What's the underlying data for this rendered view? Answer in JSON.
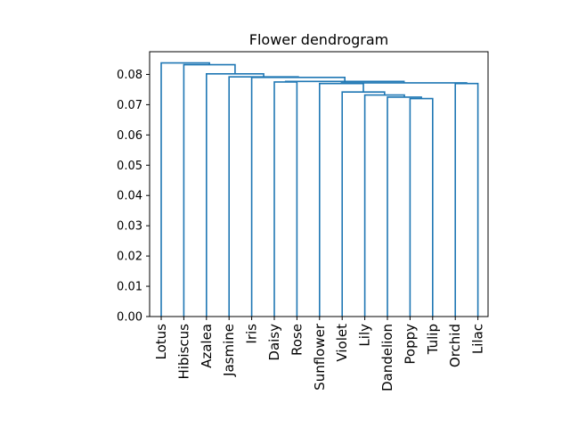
{
  "chart_data": {
    "type": "dendrogram",
    "title": "Flower dendrogram",
    "xlabel": "",
    "ylabel": "",
    "ylim": [
      0,
      0.0875
    ],
    "yticks": [
      0.0,
      0.01,
      0.02,
      0.03,
      0.04,
      0.05,
      0.06,
      0.07,
      0.08
    ],
    "grid": false,
    "line_color": "#1f77b4",
    "leaves": [
      "Lotus",
      "Hibiscus",
      "Azalea",
      "Jasmine",
      "Iris",
      "Daisy",
      "Rose",
      "Sunflower",
      "Violet",
      "Lily",
      "Dandelion",
      "Poppy",
      "Tulip",
      "Orchid",
      "Lilac"
    ],
    "merges": [
      {
        "a": "L11",
        "b": "L12",
        "height": 0.072
      },
      {
        "a": "L10",
        "b": "M0",
        "height": 0.0725
      },
      {
        "a": "L9",
        "b": "M1",
        "height": 0.0732
      },
      {
        "a": "L8",
        "b": "M2",
        "height": 0.0742
      },
      {
        "a": "L13",
        "b": "L14",
        "height": 0.077
      },
      {
        "a": "L7",
        "b": "M3",
        "height": 0.077
      },
      {
        "a": "M5",
        "b": "M4",
        "height": 0.0772
      },
      {
        "a": "L5",
        "b": "L6",
        "height": 0.0775
      },
      {
        "a": "M7",
        "b": "M6",
        "height": 0.0777
      },
      {
        "a": "L4",
        "b": "M8",
        "height": 0.079
      },
      {
        "a": "L3",
        "b": "M9",
        "height": 0.0792
      },
      {
        "a": "L2",
        "b": "M10",
        "height": 0.0802
      },
      {
        "a": "L1",
        "b": "M11",
        "height": 0.0832
      },
      {
        "a": "L0",
        "b": "M12",
        "height": 0.0838
      }
    ]
  }
}
